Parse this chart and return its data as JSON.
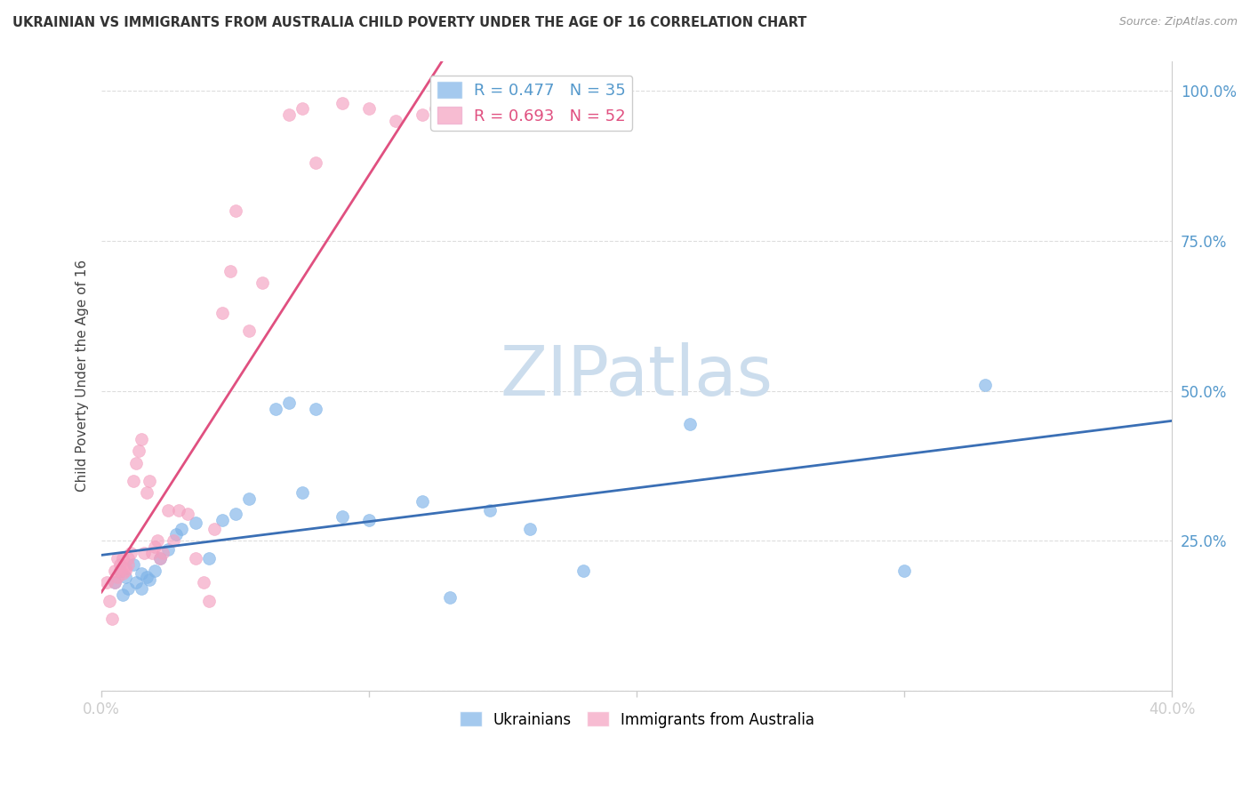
{
  "title": "UKRAINIAN VS IMMIGRANTS FROM AUSTRALIA CHILD POVERTY UNDER THE AGE OF 16 CORRELATION CHART",
  "source": "Source: ZipAtlas.com",
  "ylabel": "Child Poverty Under the Age of 16",
  "xlim": [
    0.0,
    0.4
  ],
  "ylim": [
    0.0,
    1.05
  ],
  "xticks": [
    0.0,
    0.1,
    0.2,
    0.3,
    0.4
  ],
  "xtick_labels": [
    "0.0%",
    "",
    "",
    "",
    "40.0%"
  ],
  "yticks": [
    0.0,
    0.25,
    0.5,
    0.75,
    1.0
  ],
  "ytick_labels": [
    "",
    "25.0%",
    "50.0%",
    "75.0%",
    "100.0%"
  ],
  "blue_color": "#7EB3E8",
  "pink_color": "#F4A0C0",
  "blue_line_color": "#3A6FB5",
  "pink_line_color": "#E05080",
  "watermark": "ZIPatlas",
  "watermark_color": "#CCDDED",
  "blue_R": 0.477,
  "blue_N": 35,
  "pink_R": 0.693,
  "pink_N": 52,
  "tick_color": "#5599CC",
  "blue_x": [
    0.005,
    0.007,
    0.008,
    0.009,
    0.01,
    0.012,
    0.013,
    0.015,
    0.015,
    0.017,
    0.018,
    0.02,
    0.022,
    0.025,
    0.028,
    0.03,
    0.035,
    0.04,
    0.045,
    0.05,
    0.055,
    0.065,
    0.07,
    0.075,
    0.08,
    0.09,
    0.1,
    0.12,
    0.13,
    0.145,
    0.16,
    0.18,
    0.22,
    0.3,
    0.33
  ],
  "blue_y": [
    0.18,
    0.2,
    0.16,
    0.19,
    0.17,
    0.21,
    0.18,
    0.195,
    0.17,
    0.19,
    0.185,
    0.2,
    0.22,
    0.235,
    0.26,
    0.27,
    0.28,
    0.22,
    0.285,
    0.295,
    0.32,
    0.47,
    0.48,
    0.33,
    0.47,
    0.29,
    0.285,
    0.315,
    0.155,
    0.3,
    0.27,
    0.2,
    0.445,
    0.2,
    0.51
  ],
  "pink_x": [
    0.002,
    0.003,
    0.004,
    0.005,
    0.005,
    0.006,
    0.006,
    0.007,
    0.007,
    0.008,
    0.008,
    0.009,
    0.009,
    0.01,
    0.01,
    0.011,
    0.012,
    0.013,
    0.014,
    0.015,
    0.016,
    0.017,
    0.018,
    0.019,
    0.02,
    0.021,
    0.022,
    0.023,
    0.025,
    0.027,
    0.029,
    0.032,
    0.035,
    0.038,
    0.04,
    0.042,
    0.045,
    0.048,
    0.05,
    0.055,
    0.06,
    0.07,
    0.075,
    0.08,
    0.09,
    0.1,
    0.11,
    0.12,
    0.125,
    0.13,
    0.14,
    0.145
  ],
  "pink_y": [
    0.18,
    0.15,
    0.12,
    0.18,
    0.2,
    0.19,
    0.22,
    0.2,
    0.21,
    0.195,
    0.22,
    0.2,
    0.205,
    0.22,
    0.21,
    0.23,
    0.35,
    0.38,
    0.4,
    0.42,
    0.23,
    0.33,
    0.35,
    0.23,
    0.24,
    0.25,
    0.22,
    0.23,
    0.3,
    0.25,
    0.3,
    0.295,
    0.22,
    0.18,
    0.15,
    0.27,
    0.63,
    0.7,
    0.8,
    0.6,
    0.68,
    0.96,
    0.97,
    0.88,
    0.98,
    0.97,
    0.95,
    0.96,
    0.97,
    0.96,
    0.97,
    0.97
  ]
}
